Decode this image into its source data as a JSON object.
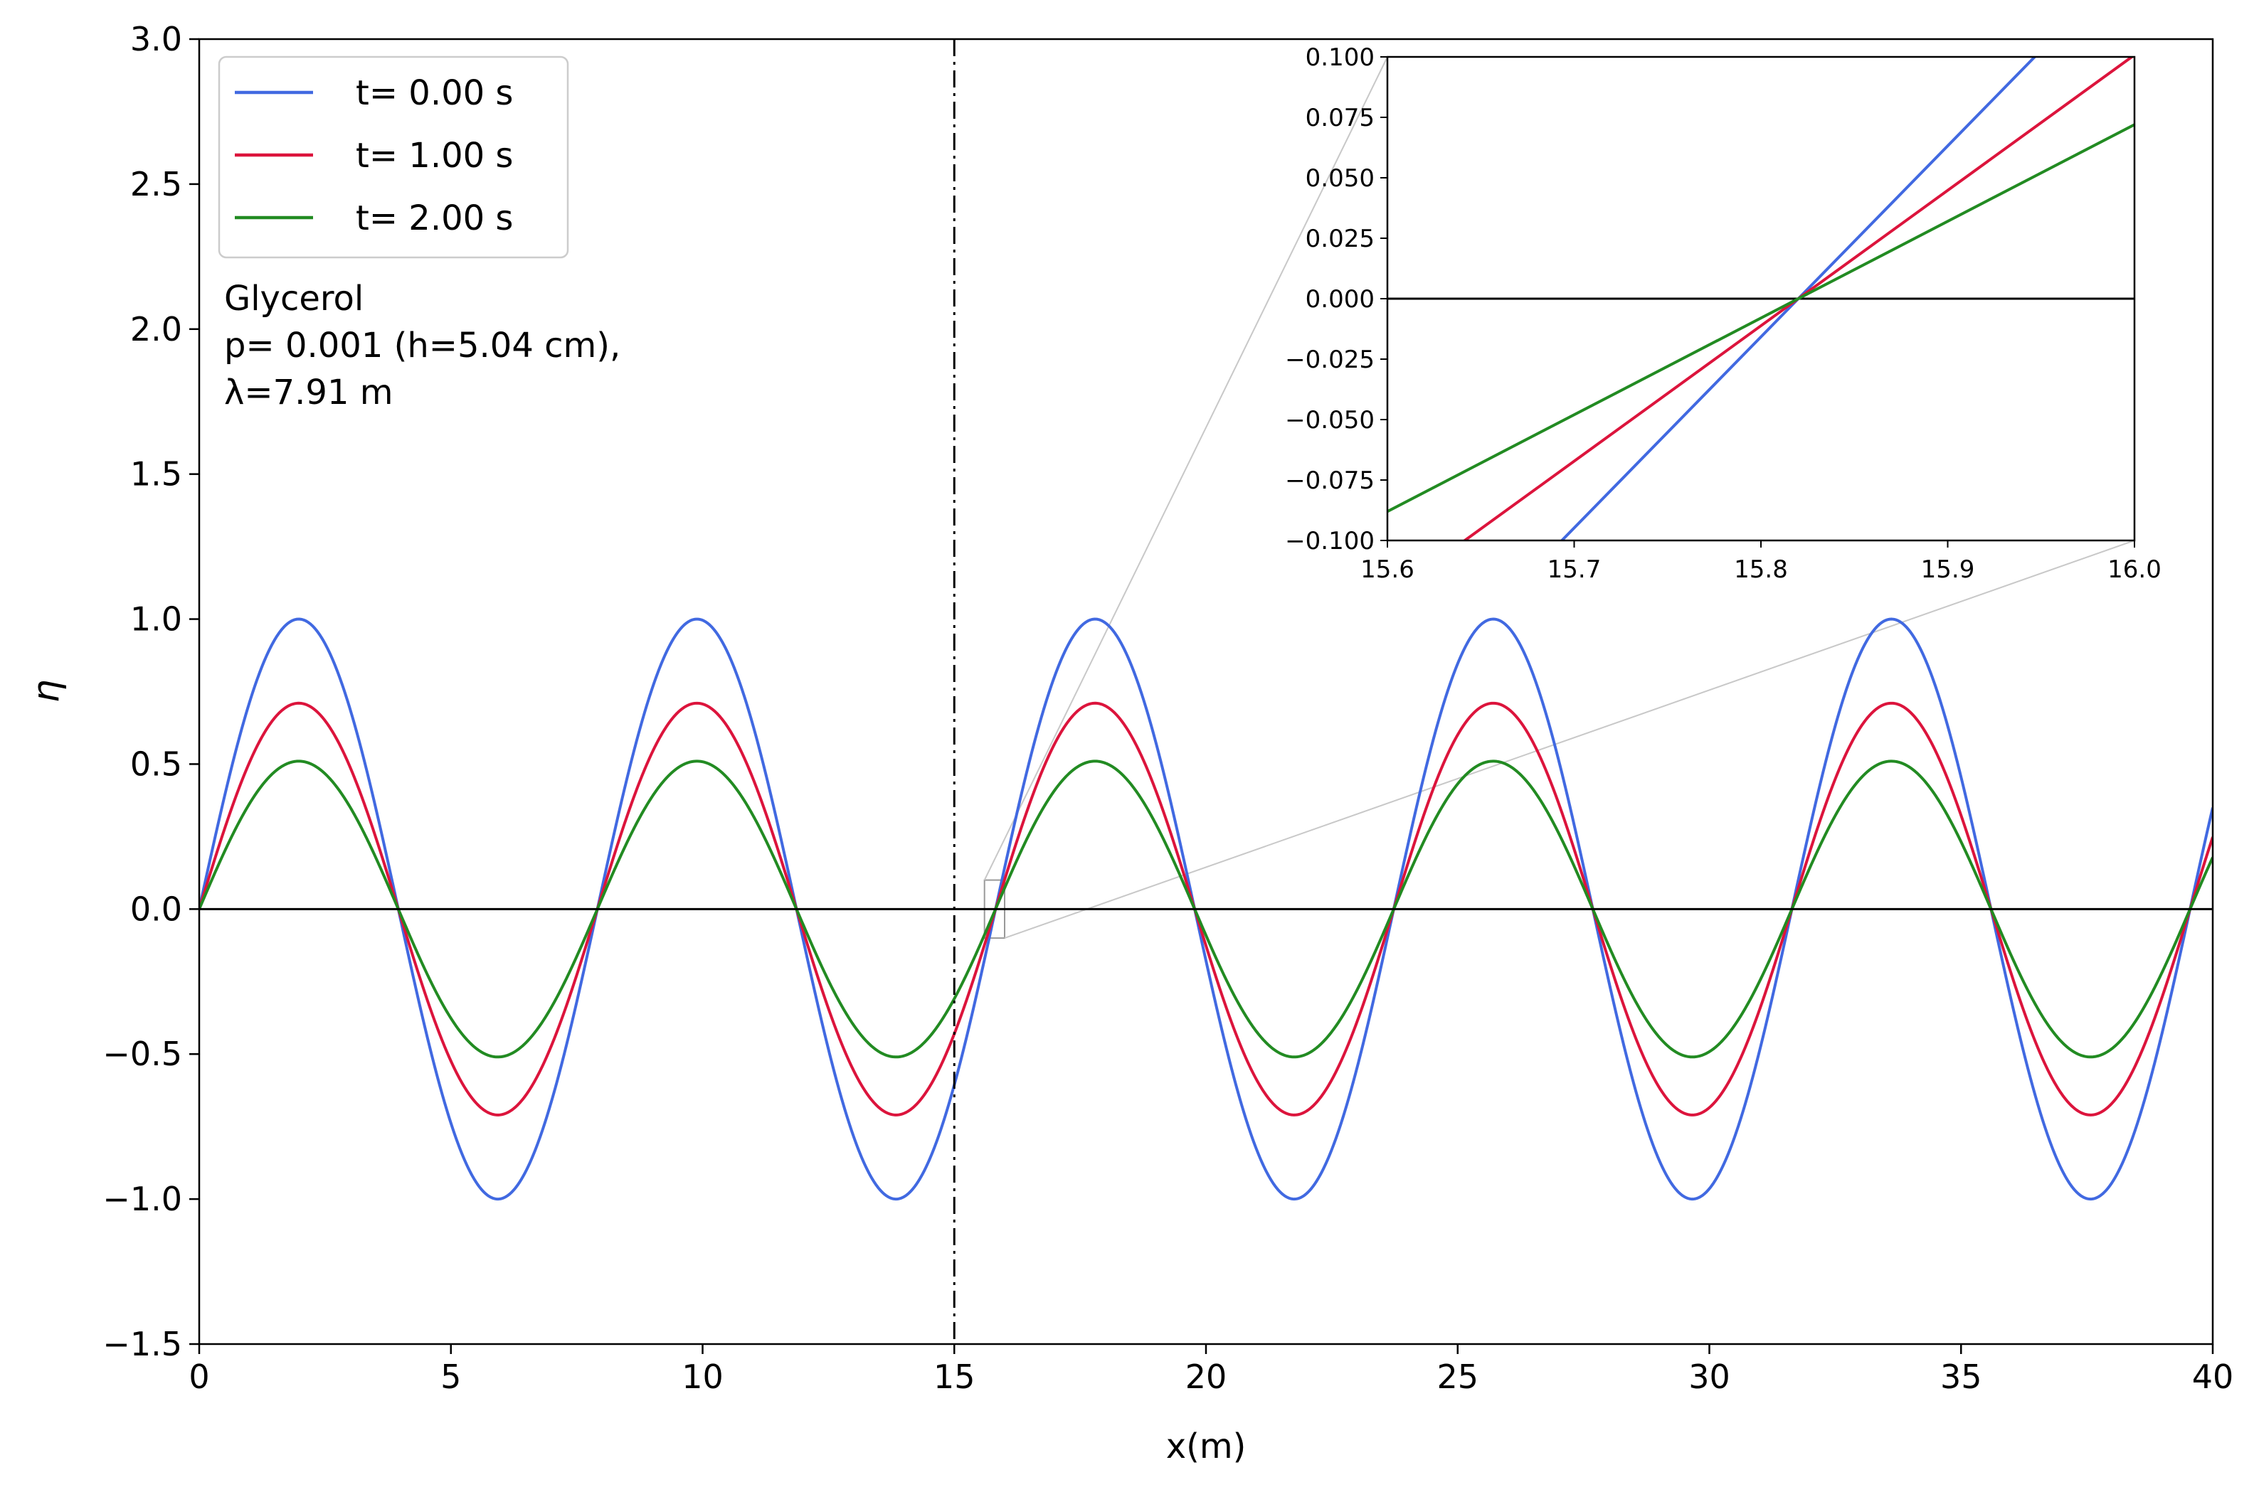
{
  "chart_data": [
    {
      "type": "line",
      "title": "",
      "xlabel": "x(m)",
      "ylabel": "η",
      "xlim": [
        0,
        40
      ],
      "ylim": [
        -1.5,
        3.0
      ],
      "x_ticks": [
        0,
        5,
        10,
        15,
        20,
        25,
        30,
        35,
        40
      ],
      "x_tick_labels": [
        "0",
        "5",
        "10",
        "15",
        "20",
        "25",
        "30",
        "35",
        "40"
      ],
      "y_ticks": [
        -1.5,
        -1.0,
        -0.5,
        0.0,
        0.5,
        1.0,
        1.5,
        2.0,
        2.5,
        3.0
      ],
      "y_tick_labels": [
        "−1.5",
        "−1.0",
        "−0.5",
        "0.0",
        "0.5",
        "1.0",
        "1.5",
        "2.0",
        "2.5",
        "3.0"
      ],
      "wave": {
        "form": "A*sin(2*pi*x/wavelength)",
        "wavelength": 7.91,
        "x_range": [
          0,
          40
        ]
      },
      "series": [
        {
          "name": "t= 0.00 s",
          "amplitude": 1.0,
          "color": "#4169e1"
        },
        {
          "name": "t= 1.00 s",
          "amplitude": 0.71,
          "color": "#dc143c"
        },
        {
          "name": "t= 2.00 s",
          "amplitude": 0.51,
          "color": "#228b22"
        }
      ],
      "reference_lines": [
        {
          "type": "horizontal",
          "y": 0.0,
          "style": "solid",
          "color": "#000000"
        },
        {
          "type": "vertical",
          "x": 15.0,
          "style": "dashdot",
          "color": "#000000"
        }
      ],
      "annotation": {
        "lines": [
          "Glycerol",
          "p= 0.001 (h=5.04 cm),",
          "λ=7.91 m"
        ]
      },
      "legend_position": "top-left",
      "zoom_region": {
        "x": [
          15.6,
          16.0
        ],
        "y": [
          -0.1,
          0.1
        ]
      }
    },
    {
      "type": "line",
      "role": "inset",
      "xlim": [
        15.6,
        16.0
      ],
      "ylim": [
        -0.1,
        0.1
      ],
      "x_ticks": [
        15.6,
        15.7,
        15.8,
        15.9,
        16.0
      ],
      "x_tick_labels": [
        "15.6",
        "15.7",
        "15.8",
        "15.9",
        "16.0"
      ],
      "y_ticks": [
        -0.1,
        -0.075,
        -0.05,
        -0.025,
        0.0,
        0.025,
        0.05,
        0.075,
        0.1
      ],
      "y_tick_labels": [
        "−0.100",
        "−0.075",
        "−0.050",
        "−0.025",
        "0.000",
        "0.025",
        "0.050",
        "0.075",
        "0.100"
      ],
      "zero_crossing_x": 15.82,
      "series": [
        {
          "name": "t= 0.00 s",
          "slope": 0.79,
          "color": "#4169e1"
        },
        {
          "name": "t= 1.00 s",
          "slope": 0.56,
          "color": "#dc143c"
        },
        {
          "name": "t= 2.00 s",
          "slope": 0.4,
          "color": "#228b22"
        }
      ],
      "reference_lines": [
        {
          "type": "horizontal",
          "y": 0.0,
          "style": "solid",
          "color": "#000000"
        }
      ]
    }
  ]
}
